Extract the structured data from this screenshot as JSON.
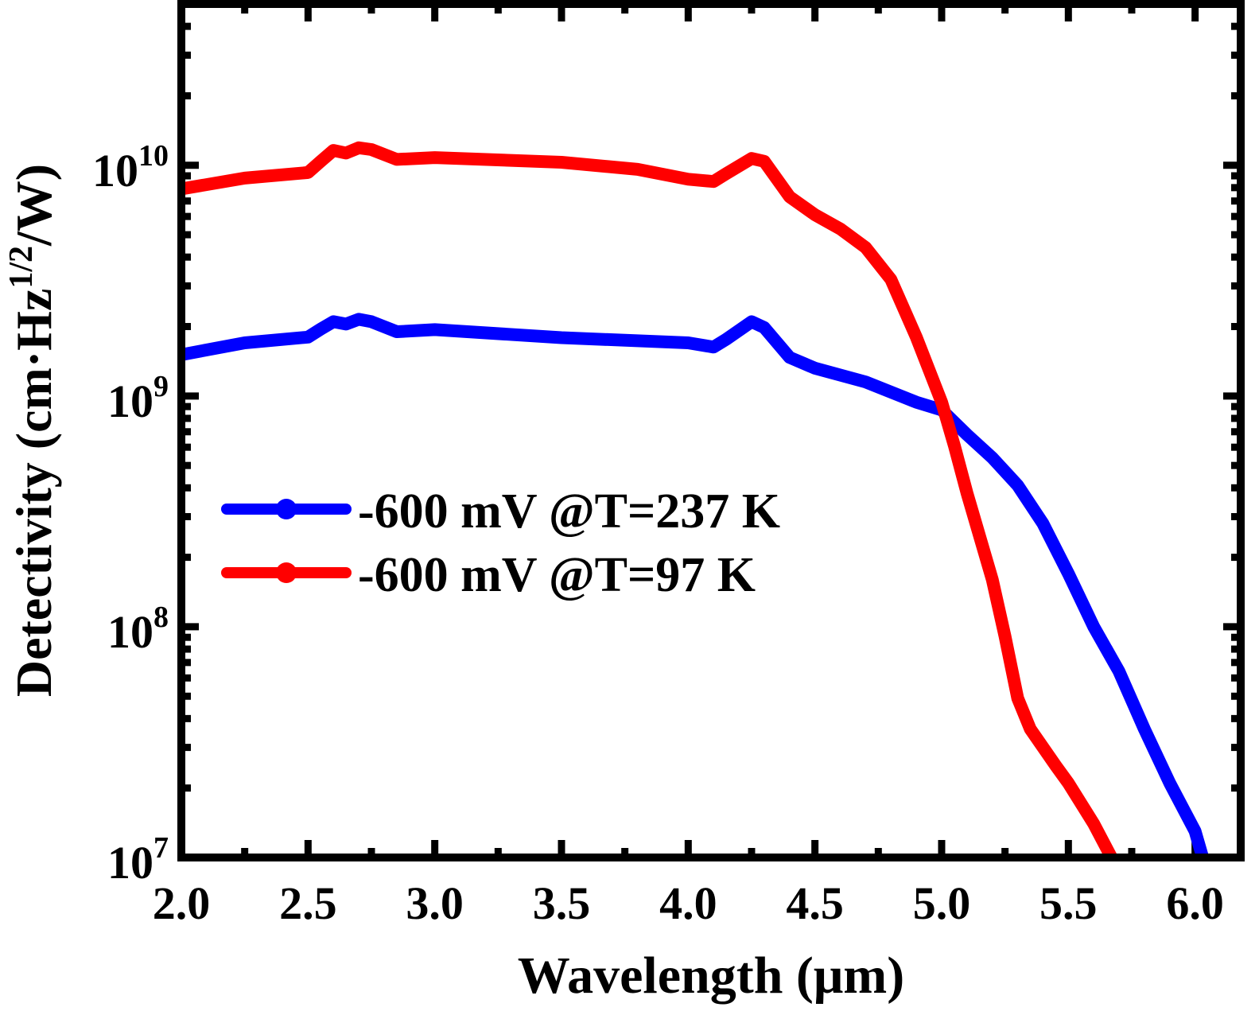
{
  "chart_data": {
    "type": "line",
    "xlabel": "Wavelength (μm)",
    "ylabel": {
      "main": "Detectivity (cm·Hz",
      "sup": "1/2",
      "end": "/W)"
    },
    "xlim": [
      2.0,
      6.18
    ],
    "ylim": [
      10000000.0,
      50000000000.0
    ],
    "yscale": "log",
    "grid": false,
    "legend_position": "middle-left",
    "x_ticks": [
      "2.0",
      "2.5",
      "3.0",
      "3.5",
      "4.0",
      "4.5",
      "5.0",
      "5.5",
      "6.0"
    ],
    "y_ticks": [
      {
        "base": "10",
        "exp": "7",
        "value": 10000000.0
      },
      {
        "base": "10",
        "exp": "8",
        "value": 100000000.0
      },
      {
        "base": "10",
        "exp": "9",
        "value": 1000000000.0
      },
      {
        "base": "10",
        "exp": "10",
        "value": 10000000000.0
      }
    ],
    "series": [
      {
        "name": "-600 mV @T=237 K",
        "color": "#0000ff",
        "x": [
          2.0,
          2.25,
          2.5,
          2.55,
          2.6,
          2.65,
          2.7,
          2.75,
          2.85,
          3.0,
          3.5,
          4.0,
          4.1,
          4.15,
          4.25,
          4.3,
          4.4,
          4.5,
          4.7,
          4.9,
          5.0,
          5.1,
          5.2,
          5.3,
          5.4,
          5.5,
          5.6,
          5.7,
          5.8,
          5.9,
          6.0,
          6.03
        ],
        "y": [
          1510000000.0,
          1700000000.0,
          1800000000.0,
          1950000000.0,
          2100000000.0,
          2050000000.0,
          2150000000.0,
          2100000000.0,
          1900000000.0,
          1940000000.0,
          1790000000.0,
          1700000000.0,
          1630000000.0,
          1760000000.0,
          2100000000.0,
          1980000000.0,
          1470000000.0,
          1320000000.0,
          1150000000.0,
          940000000.0,
          870000000.0,
          680000000.0,
          540000000.0,
          410000000.0,
          280000000.0,
          170000000.0,
          100000000.0,
          64000000.0,
          36000000.0,
          21000000.0,
          13000000.0,
          10000000.0
        ]
      },
      {
        "name": "-600 mV @T=97 K",
        "color": "#ff0000",
        "x": [
          2.0,
          2.25,
          2.5,
          2.55,
          2.6,
          2.65,
          2.7,
          2.75,
          2.85,
          3.0,
          3.5,
          3.8,
          4.0,
          4.1,
          4.15,
          4.25,
          4.3,
          4.4,
          4.5,
          4.6,
          4.7,
          4.8,
          4.9,
          5.0,
          5.05,
          5.1,
          5.2,
          5.25,
          5.3,
          5.35,
          5.45,
          5.5,
          5.6,
          5.67
        ],
        "y": [
          7900000000.0,
          8800000000.0,
          9300000000.0,
          10400000000.0,
          11600000000.0,
          11300000000.0,
          11900000000.0,
          11700000000.0,
          10600000000.0,
          10800000000.0,
          10300000000.0,
          9600000000.0,
          8700000000.0,
          8500000000.0,
          9200000000.0,
          10700000000.0,
          10400000000.0,
          7300000000.0,
          6100000000.0,
          5300000000.0,
          4400000000.0,
          3200000000.0,
          1800000000.0,
          940000000.0,
          610000000.0,
          380000000.0,
          160000000.0,
          91000000.0,
          49000000.0,
          36000000.0,
          25000000.0,
          21000000.0,
          14000000.0,
          10000000.0
        ]
      }
    ]
  }
}
